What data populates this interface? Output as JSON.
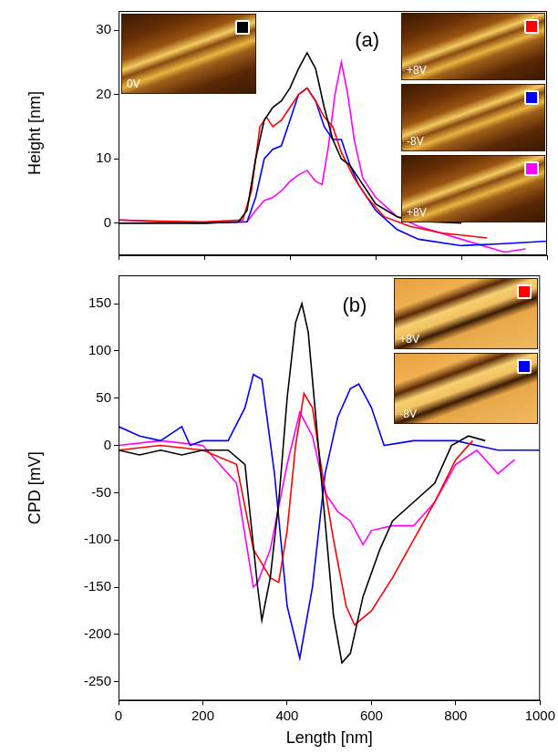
{
  "chart_data": [
    {
      "type": "line",
      "title": "(a)",
      "y_label": "Height [nm]",
      "xlim": [
        0,
        1000
      ],
      "xticks": [
        0,
        200,
        400,
        600,
        800,
        1000
      ],
      "ylim": [
        -5,
        33
      ],
      "yticks": [
        0,
        10,
        20,
        30
      ],
      "tick_labels": "y",
      "grid": false,
      "series": [
        {
          "color": "#000000",
          "x": [
            0,
            100,
            200,
            280,
            300,
            320,
            340,
            360,
            380,
            400,
            420,
            440,
            460,
            480,
            500,
            520,
            540,
            560,
            580,
            600,
            650,
            700,
            800
          ],
          "values": [
            0,
            0,
            0,
            0.2,
            2,
            10,
            16,
            18,
            19,
            21,
            24,
            26.5,
            24,
            18,
            13,
            10,
            9,
            7,
            5,
            3,
            1,
            0.3,
            0
          ]
        },
        {
          "color": "#ff0000",
          "x": [
            0,
            100,
            200,
            290,
            310,
            330,
            345,
            360,
            380,
            400,
            420,
            440,
            460,
            480,
            500,
            520,
            550,
            580,
            620,
            680,
            750,
            860
          ],
          "values": [
            0.5,
            0.3,
            0.2,
            0.5,
            5,
            15,
            16.5,
            15,
            16,
            18,
            20,
            21,
            19,
            16.5,
            15,
            11,
            7,
            4,
            1,
            -0.5,
            -1.5,
            -2.3
          ]
        },
        {
          "color": "#0000ff",
          "x": [
            0,
            100,
            200,
            300,
            320,
            340,
            360,
            380,
            400,
            420,
            440,
            460,
            480,
            500,
            520,
            540,
            560,
            600,
            650,
            700,
            800,
            900,
            1000
          ],
          "values": [
            0,
            0,
            0,
            0.2,
            4,
            10,
            11.5,
            12,
            16,
            20,
            21,
            19,
            15,
            13,
            13,
            9,
            6,
            2,
            -1,
            -2.5,
            -3.5,
            -3.2,
            -2.8
          ]
        },
        {
          "color": "#ff00ff",
          "x": [
            0,
            100,
            200,
            300,
            320,
            340,
            360,
            380,
            400,
            420,
            440,
            460,
            475,
            490,
            505,
            520,
            535,
            550,
            570,
            600,
            650,
            700,
            800,
            900,
            950
          ],
          "values": [
            0.5,
            0.2,
            0,
            0.2,
            2,
            3.5,
            4,
            5,
            6.5,
            7.5,
            8.2,
            6.5,
            6,
            12,
            20,
            25,
            20,
            13,
            7,
            4,
            1,
            -0.5,
            -2.5,
            -4.5,
            -4
          ]
        }
      ],
      "annotations": [
        {
          "text": "0V",
          "color": "#000000"
        },
        {
          "text": "+8V",
          "color": "#ff0000"
        },
        {
          "text": "-8V",
          "color": "#0000ff"
        },
        {
          "text": "+8V",
          "color": "#ff00ff"
        }
      ]
    },
    {
      "type": "line",
      "title": "(b)",
      "x_label": "Length [nm]",
      "y_label": "CPD [mV]",
      "xlim": [
        0,
        1000
      ],
      "xticks": [
        0,
        200,
        400,
        600,
        800,
        1000
      ],
      "ylim": [
        -270,
        180
      ],
      "yticks": [
        -250,
        -200,
        -150,
        -100,
        -50,
        0,
        50,
        100,
        150
      ],
      "grid": false,
      "series": [
        {
          "color": "#000000",
          "x": [
            0,
            50,
            100,
            150,
            200,
            260,
            300,
            330,
            340,
            360,
            380,
            400,
            420,
            435,
            450,
            470,
            490,
            510,
            530,
            550,
            580,
            620,
            650,
            700,
            750,
            790,
            830,
            870
          ],
          "values": [
            -5,
            -10,
            -5,
            -10,
            -5,
            -5,
            -20,
            -150,
            -185,
            -140,
            -60,
            50,
            130,
            150,
            120,
            20,
            -80,
            -180,
            -230,
            -220,
            -160,
            -110,
            -80,
            -60,
            -40,
            0,
            10,
            5
          ]
        },
        {
          "color": "#ff0000",
          "x": [
            0,
            100,
            200,
            280,
            320,
            360,
            380,
            400,
            420,
            440,
            460,
            480,
            510,
            540,
            560,
            600,
            650,
            700,
            750,
            800,
            840
          ],
          "values": [
            -5,
            0,
            -5,
            -20,
            -110,
            -140,
            -145,
            -90,
            0,
            55,
            40,
            -20,
            -100,
            -170,
            -190,
            -175,
            -140,
            -100,
            -60,
            -15,
            5
          ]
        },
        {
          "color": "#0000ff",
          "x": [
            0,
            50,
            100,
            150,
            170,
            200,
            260,
            300,
            320,
            340,
            370,
            400,
            430,
            460,
            490,
            520,
            550,
            570,
            600,
            630,
            700,
            800,
            900,
            1000
          ],
          "values": [
            20,
            10,
            5,
            20,
            0,
            5,
            5,
            40,
            75,
            70,
            -30,
            -170,
            -225,
            -150,
            -30,
            30,
            60,
            65,
            40,
            0,
            5,
            5,
            -5,
            -5
          ]
        },
        {
          "color": "#ff00ff",
          "x": [
            0,
            100,
            200,
            280,
            320,
            330,
            360,
            400,
            430,
            460,
            490,
            520,
            550,
            580,
            600,
            650,
            700,
            750,
            800,
            850,
            900,
            940
          ],
          "values": [
            0,
            5,
            0,
            -40,
            -150,
            -145,
            -110,
            -20,
            35,
            10,
            -50,
            -70,
            -80,
            -105,
            -90,
            -85,
            -85,
            -60,
            -20,
            -5,
            -30,
            -15
          ]
        }
      ],
      "annotations": [
        {
          "text": "+8V",
          "color": "#ff0000"
        },
        {
          "text": "-8V",
          "color": "#0000ff"
        }
      ]
    }
  ]
}
